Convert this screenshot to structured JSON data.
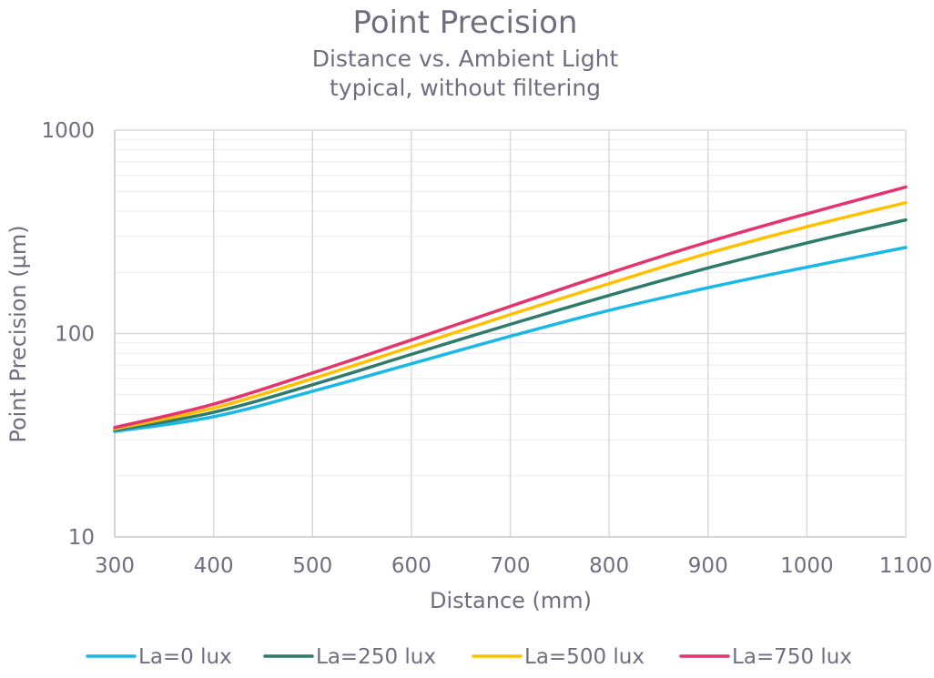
{
  "chart_data": {
    "type": "line",
    "title": "Point Precision",
    "subtitle": [
      "Distance vs. Ambient Light",
      "typical, without filtering"
    ],
    "xlabel": "Distance (mm)",
    "ylabel": "Point Precision (µm)",
    "x": [
      300,
      400,
      500,
      600,
      700,
      800,
      900,
      1000,
      1100
    ],
    "xlim": [
      300,
      1100
    ],
    "xticks": [
      "300",
      "400",
      "500",
      "600",
      "700",
      "800",
      "900",
      "1000",
      "1100"
    ],
    "ylim": [
      10,
      1000
    ],
    "yscale": "log",
    "yticks": [
      "10",
      "100",
      "1000"
    ],
    "grid": true,
    "legend_position": "bottom",
    "series": [
      {
        "name": "La=0 lux",
        "color": "#1ab8e6",
        "values": [
          33,
          39,
          52,
          71,
          97,
          130,
          168,
          212,
          265
        ]
      },
      {
        "name": "La=250 lux",
        "color": "#2e7b6b",
        "values": [
          33.5,
          41,
          56,
          79,
          111,
          154,
          210,
          279,
          362
        ]
      },
      {
        "name": "La=500 lux",
        "color": "#ffc000",
        "values": [
          34,
          43,
          60,
          86,
          124,
          176,
          248,
          335,
          440
        ]
      },
      {
        "name": "La=750 lux",
        "color": "#e4346f",
        "values": [
          34.5,
          45,
          64,
          93,
          136,
          198,
          282,
          388,
          525
        ]
      }
    ]
  }
}
